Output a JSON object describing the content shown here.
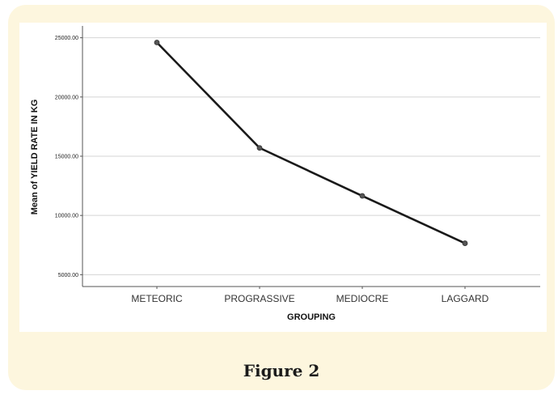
{
  "figure": {
    "caption": "Figure 2"
  },
  "chart_data": {
    "type": "line",
    "categories": [
      "METEORIC",
      "PROGRASSIVE",
      "MEDIOCRE",
      "LAGGARD"
    ],
    "series": [
      {
        "values": [
          24600,
          15700,
          11650,
          7650
        ]
      }
    ],
    "xlabel": "GROUPING",
    "ylabel": "Mean of YIELD RATE IN KG",
    "yticks": [
      "5000.00",
      "10000.00",
      "15000.00",
      "20000.00",
      "25000.00"
    ],
    "ylim": [
      4000,
      26000
    ],
    "grid": true,
    "line_color": "#1a1a1a",
    "marker_color": "#555555"
  }
}
